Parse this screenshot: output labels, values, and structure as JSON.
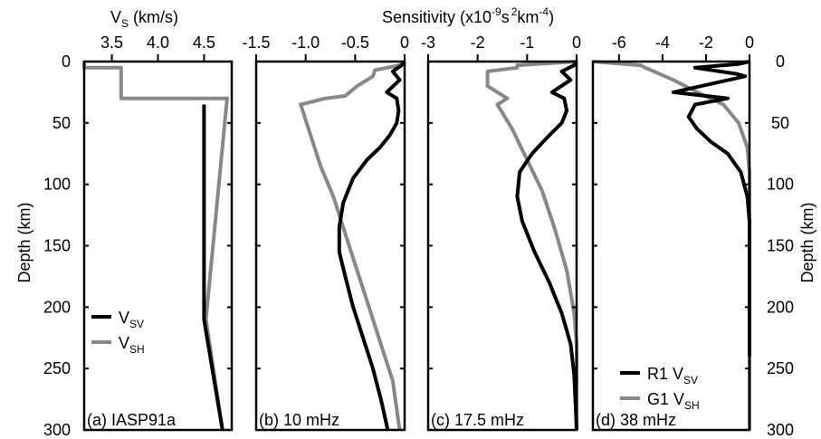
{
  "chart_data": {
    "type": "line",
    "top_labels": {
      "vs_axis": "V",
      "vs_sub": "S",
      "vs_unit": " (km/s)",
      "sens_prefix": "Sensitivity (x10",
      "sens_exp1": "-9",
      "sens_mid": "s",
      "sens_exp2": "2",
      "sens_km": "km",
      "sens_exp3": "-4",
      "sens_suffix": ")"
    },
    "ylabel": "Depth (km)",
    "ylim": [
      0,
      300
    ],
    "yticks": [
      "0",
      "50",
      "100",
      "150",
      "200",
      "250",
      "300"
    ],
    "colors": {
      "sv": "#000000",
      "sh": "#888888",
      "frame": "#000000"
    },
    "panels": [
      {
        "id": "a",
        "label": "(a) IASP91a",
        "xlim": [
          3.2,
          4.8
        ],
        "xticks": [
          {
            "v": 3.5,
            "t": "3.5"
          },
          {
            "v": 4.0,
            "t": "4.0"
          },
          {
            "v": 4.5,
            "t": "4.5"
          }
        ],
        "legend": [
          {
            "series": "sv",
            "name": "V",
            "sub": "SV"
          },
          {
            "series": "sh",
            "name": "V",
            "sub": "SH"
          }
        ],
        "series": [
          {
            "name": "V_SV",
            "key": "sv",
            "x": [
              4.5,
              4.5,
              4.5,
              4.7
            ],
            "y": [
              35,
              100,
              210,
              300
            ]
          },
          {
            "name": "V_SH",
            "key": "sh",
            "x": [
              3.2,
              3.2,
              3.6,
              3.6,
              4.75,
              4.52,
              4.7
            ],
            "y": [
              0,
              5,
              5,
              30,
              30,
              210,
              300
            ]
          }
        ]
      },
      {
        "id": "b",
        "label": "(b) 10 mHz",
        "xlim": [
          -1.5,
          0
        ],
        "xticks": [
          {
            "v": -1.5,
            "t": "-1.5"
          },
          {
            "v": -1.0,
            "t": "-1.0"
          },
          {
            "v": -0.5,
            "t": "-0.5"
          },
          {
            "v": 0,
            "t": "0"
          }
        ],
        "series": [
          {
            "name": "R1 V_SV",
            "key": "sv",
            "x": [
              0,
              -0.03,
              -0.12,
              -0.05,
              -0.18,
              -0.08,
              -0.06,
              -0.08,
              -0.15,
              -0.25,
              -0.38,
              -0.52,
              -0.62,
              -0.66,
              -0.66,
              -0.6,
              -0.52,
              -0.42,
              -0.32,
              -0.24,
              -0.17
            ],
            "y": [
              0,
              3,
              8,
              15,
              25,
              30,
              40,
              50,
              60,
              70,
              80,
              95,
              115,
              135,
              155,
              175,
              200,
              225,
              250,
              275,
              300
            ]
          },
          {
            "name": "G1 V_SH",
            "key": "sh",
            "x": [
              0,
              -0.05,
              -0.3,
              -0.32,
              -0.48,
              -0.6,
              -0.8,
              -1.05,
              -0.95,
              -0.85,
              -0.72,
              -0.62,
              -0.52,
              -0.42,
              -0.32,
              -0.22,
              -0.12,
              -0.05
            ],
            "y": [
              0,
              3,
              7,
              12,
              20,
              28,
              30,
              35,
              60,
              85,
              110,
              135,
              160,
              185,
              210,
              235,
              260,
              300
            ]
          }
        ]
      },
      {
        "id": "c",
        "label": "(c) 17.5 mHz",
        "xlim": [
          -3,
          0
        ],
        "xticks": [
          {
            "v": -3,
            "t": "-3"
          },
          {
            "v": -2,
            "t": "-2"
          },
          {
            "v": -1,
            "t": "-1"
          },
          {
            "v": 0,
            "t": "0"
          }
        ],
        "series": [
          {
            "name": "R1 V_SV",
            "key": "sv",
            "x": [
              0,
              -0.05,
              -0.3,
              -0.12,
              -0.5,
              -0.25,
              -0.2,
              -0.3,
              -0.55,
              -0.9,
              -1.15,
              -1.2,
              -1.1,
              -0.85,
              -0.55,
              -0.3,
              -0.12,
              -0.05,
              -0.02,
              0
            ],
            "y": [
              0,
              3,
              8,
              15,
              25,
              30,
              40,
              50,
              60,
              75,
              90,
              110,
              130,
              155,
              180,
              205,
              230,
              255,
              280,
              300
            ]
          },
          {
            "name": "G1 V_SH",
            "key": "sh",
            "x": [
              0,
              -1.2,
              -1.2,
              -1.8,
              -1.8,
              -1.4,
              -1.6,
              -1.3,
              -1.0,
              -0.7,
              -0.45,
              -0.2,
              -0.05,
              0,
              0
            ],
            "y": [
              0,
              3,
              5,
              8,
              20,
              30,
              35,
              55,
              80,
              105,
              135,
              170,
              205,
              230,
              300
            ]
          }
        ]
      },
      {
        "id": "d",
        "label": "(d) 38 mHz",
        "xlim": [
          -7.2,
          0
        ],
        "xticks": [
          {
            "v": -6,
            "t": "-6"
          },
          {
            "v": -4,
            "t": "-4"
          },
          {
            "v": -2,
            "t": "-2"
          },
          {
            "v": 0,
            "t": "0"
          }
        ],
        "legend": [
          {
            "series": "sv",
            "name": "R1 V",
            "sub": "SV"
          },
          {
            "series": "sh",
            "name": "G1 V",
            "sub": "SH"
          }
        ],
        "series": [
          {
            "name": "R1 V_SV",
            "key": "sv",
            "x": [
              0,
              -0.5,
              -2.5,
              -0.6,
              -0.2,
              -3.5,
              -1.0,
              -2.5,
              -2.8,
              -2.4,
              -1.8,
              -1.0,
              -0.4,
              -0.1,
              0,
              0
            ],
            "y": [
              0,
              2,
              5,
              10,
              12,
              25,
              30,
              35,
              45,
              55,
              65,
              75,
              90,
              110,
              130,
              240
            ]
          },
          {
            "name": "G1 V_SH",
            "key": "sh",
            "x": [
              -7.2,
              -5.0,
              -4.8,
              -4.4,
              -3.5,
              -2.4,
              -1.2,
              -0.5,
              -0.1,
              0,
              0
            ],
            "y": [
              0,
              3,
              5,
              8,
              15,
              25,
              35,
              50,
              70,
              90,
              300
            ]
          }
        ]
      }
    ]
  }
}
